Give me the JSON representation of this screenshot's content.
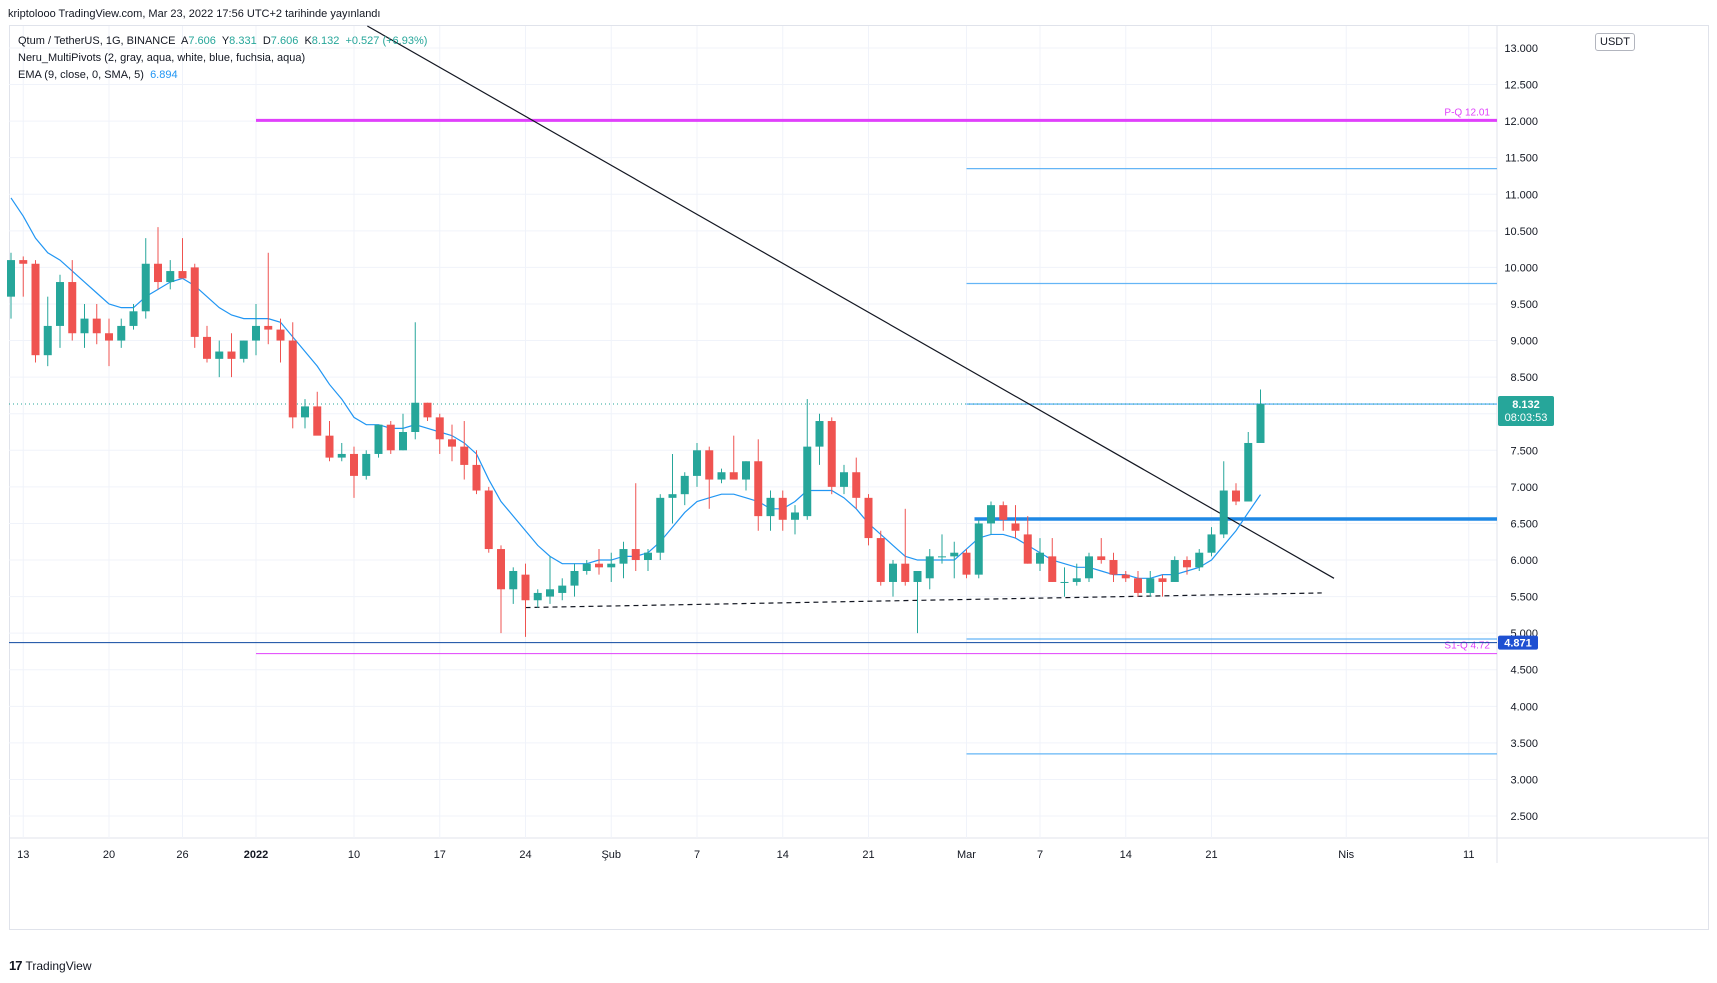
{
  "header": {
    "published_text": "kriptolooo TradingView.com, Mar 23, 2022 17:56 UTC+2 tarihinde yayınlandı"
  },
  "legend": {
    "symbol_line": "Qtum / TetherUS, 1G, BINANCE",
    "ohlc": {
      "a_label": "A",
      "a": "7.606",
      "y_label": "Y",
      "y": "8.331",
      "d_label": "D",
      "d": "7.606",
      "k_label": "K",
      "k": "8.132",
      "change": "+0.527 (+6.93%)"
    },
    "pivots_line": "Neru_MultiPivots (2, gray, aqua, white, blue, fuchsia, aqua)",
    "ema_line": "EMA (9, close, 0, SMA, 5)",
    "ema_value": "6.894"
  },
  "currency_button": "USDT",
  "footer": {
    "logo": "17",
    "brand": "TradingView"
  },
  "colors": {
    "up": "#26a69a",
    "down": "#ef5350",
    "ema": "#2196f3",
    "pivot_main": "#e040fb",
    "pivot_aqua": "#64b5f6",
    "support": "#1e88e5",
    "price_tag": "#26a69a",
    "low_tag": "#1e50d2"
  },
  "chart_data": {
    "type": "candlestick",
    "title": "Qtum / TetherUS, 1G, BINANCE",
    "ylim": [
      2.2,
      13.3
    ],
    "y_ticks": [
      "2.500",
      "3.000",
      "3.500",
      "4.000",
      "4.500",
      "5.000",
      "5.500",
      "6.000",
      "6.500",
      "7.000",
      "7.500",
      "8.000",
      "8.500",
      "9.000",
      "9.500",
      "10.000",
      "10.500",
      "11.000",
      "11.500",
      "12.000",
      "12.500",
      "13.000"
    ],
    "x_ticks": [
      {
        "label": "13",
        "index": 1
      },
      {
        "label": "20",
        "index": 8
      },
      {
        "label": "26",
        "index": 14
      },
      {
        "label": "2022",
        "index": 20
      },
      {
        "label": "10",
        "index": 28
      },
      {
        "label": "17",
        "index": 35
      },
      {
        "label": "24",
        "index": 42
      },
      {
        "label": "Şub",
        "index": 49
      },
      {
        "label": "7",
        "index": 56
      },
      {
        "label": "14",
        "index": 63
      },
      {
        "label": "21",
        "index": 70
      },
      {
        "label": "Mar",
        "index": 78
      },
      {
        "label": "7",
        "index": 84
      },
      {
        "label": "14",
        "index": 91
      },
      {
        "label": "21",
        "index": 98
      },
      {
        "label": "Nis",
        "index": 109
      },
      {
        "label": "11",
        "index": 119
      }
    ],
    "candles": [
      {
        "o": 9.6,
        "h": 10.2,
        "l": 9.3,
        "c": 10.1
      },
      {
        "o": 10.1,
        "h": 10.15,
        "l": 9.6,
        "c": 10.05
      },
      {
        "o": 10.05,
        "h": 10.1,
        "l": 8.7,
        "c": 8.8
      },
      {
        "o": 8.8,
        "h": 9.6,
        "l": 8.65,
        "c": 9.2
      },
      {
        "o": 9.2,
        "h": 9.9,
        "l": 8.9,
        "c": 9.8
      },
      {
        "o": 9.8,
        "h": 10.1,
        "l": 9.0,
        "c": 9.1
      },
      {
        "o": 9.1,
        "h": 9.5,
        "l": 8.9,
        "c": 9.3
      },
      {
        "o": 9.3,
        "h": 9.5,
        "l": 8.95,
        "c": 9.1
      },
      {
        "o": 9.1,
        "h": 9.3,
        "l": 8.65,
        "c": 9.0
      },
      {
        "o": 9.0,
        "h": 9.3,
        "l": 8.9,
        "c": 9.2
      },
      {
        "o": 9.2,
        "h": 9.5,
        "l": 9.15,
        "c": 9.4
      },
      {
        "o": 9.4,
        "h": 10.4,
        "l": 9.3,
        "c": 10.05
      },
      {
        "o": 10.05,
        "h": 10.55,
        "l": 9.7,
        "c": 9.8
      },
      {
        "o": 9.8,
        "h": 10.1,
        "l": 9.7,
        "c": 9.95
      },
      {
        "o": 9.95,
        "h": 10.4,
        "l": 9.85,
        "c": 9.85
      },
      {
        "o": 10.0,
        "h": 10.05,
        "l": 8.9,
        "c": 9.05
      },
      {
        "o": 9.05,
        "h": 9.2,
        "l": 8.7,
        "c": 8.75
      },
      {
        "o": 8.75,
        "h": 9.0,
        "l": 8.5,
        "c": 8.85
      },
      {
        "o": 8.85,
        "h": 9.1,
        "l": 8.5,
        "c": 8.75
      },
      {
        "o": 8.75,
        "h": 9.0,
        "l": 8.7,
        "c": 9.0
      },
      {
        "o": 9.0,
        "h": 9.5,
        "l": 8.8,
        "c": 9.2
      },
      {
        "o": 9.2,
        "h": 10.2,
        "l": 8.95,
        "c": 9.15
      },
      {
        "o": 9.15,
        "h": 9.3,
        "l": 8.7,
        "c": 9.0
      },
      {
        "o": 9.0,
        "h": 9.25,
        "l": 7.8,
        "c": 7.95
      },
      {
        "o": 7.95,
        "h": 8.2,
        "l": 7.8,
        "c": 8.1
      },
      {
        "o": 8.1,
        "h": 8.3,
        "l": 7.8,
        "c": 7.7
      },
      {
        "o": 7.7,
        "h": 7.9,
        "l": 7.35,
        "c": 7.4
      },
      {
        "o": 7.4,
        "h": 7.6,
        "l": 7.35,
        "c": 7.45
      },
      {
        "o": 7.45,
        "h": 7.55,
        "l": 6.85,
        "c": 7.15
      },
      {
        "o": 7.15,
        "h": 7.5,
        "l": 7.1,
        "c": 7.45
      },
      {
        "o": 7.45,
        "h": 7.8,
        "l": 7.4,
        "c": 7.85
      },
      {
        "o": 7.85,
        "h": 7.9,
        "l": 7.45,
        "c": 7.5
      },
      {
        "o": 7.5,
        "h": 8.0,
        "l": 7.5,
        "c": 7.75
      },
      {
        "o": 7.75,
        "h": 9.25,
        "l": 7.65,
        "c": 8.15
      },
      {
        "o": 8.15,
        "h": 8.15,
        "l": 7.9,
        "c": 7.95
      },
      {
        "o": 7.95,
        "h": 8.0,
        "l": 7.45,
        "c": 7.65
      },
      {
        "o": 7.65,
        "h": 7.85,
        "l": 7.35,
        "c": 7.55
      },
      {
        "o": 7.55,
        "h": 7.9,
        "l": 7.1,
        "c": 7.3
      },
      {
        "o": 7.3,
        "h": 7.5,
        "l": 6.9,
        "c": 6.95
      },
      {
        "o": 6.95,
        "h": 7.0,
        "l": 6.1,
        "c": 6.15
      },
      {
        "o": 6.15,
        "h": 6.2,
        "l": 5.0,
        "c": 5.6
      },
      {
        "o": 5.6,
        "h": 5.9,
        "l": 5.4,
        "c": 5.85
      },
      {
        "o": 5.8,
        "h": 5.95,
        "l": 4.95,
        "c": 5.45
      },
      {
        "o": 5.45,
        "h": 5.6,
        "l": 5.35,
        "c": 5.55
      },
      {
        "o": 5.5,
        "h": 6.05,
        "l": 5.4,
        "c": 5.6
      },
      {
        "o": 5.55,
        "h": 5.75,
        "l": 5.45,
        "c": 5.65
      },
      {
        "o": 5.65,
        "h": 5.95,
        "l": 5.5,
        "c": 5.85
      },
      {
        "o": 5.85,
        "h": 6.0,
        "l": 5.8,
        "c": 5.95
      },
      {
        "o": 5.95,
        "h": 6.15,
        "l": 5.8,
        "c": 5.9
      },
      {
        "o": 5.9,
        "h": 6.1,
        "l": 5.7,
        "c": 5.95
      },
      {
        "o": 5.95,
        "h": 6.25,
        "l": 5.75,
        "c": 6.15
      },
      {
        "o": 6.15,
        "h": 7.05,
        "l": 5.85,
        "c": 6.0
      },
      {
        "o": 6.0,
        "h": 6.15,
        "l": 5.85,
        "c": 6.1
      },
      {
        "o": 6.1,
        "h": 6.9,
        "l": 6.0,
        "c": 6.85
      },
      {
        "o": 6.85,
        "h": 7.45,
        "l": 6.5,
        "c": 6.9
      },
      {
        "o": 6.9,
        "h": 7.2,
        "l": 6.75,
        "c": 7.15
      },
      {
        "o": 7.15,
        "h": 7.6,
        "l": 7.0,
        "c": 7.5
      },
      {
        "o": 7.5,
        "h": 7.55,
        "l": 6.7,
        "c": 7.1
      },
      {
        "o": 7.1,
        "h": 7.25,
        "l": 7.05,
        "c": 7.2
      },
      {
        "o": 7.2,
        "h": 7.7,
        "l": 7.1,
        "c": 7.1
      },
      {
        "o": 7.1,
        "h": 7.35,
        "l": 6.95,
        "c": 7.35
      },
      {
        "o": 7.35,
        "h": 7.65,
        "l": 6.4,
        "c": 6.6
      },
      {
        "o": 6.6,
        "h": 6.95,
        "l": 6.4,
        "c": 6.85
      },
      {
        "o": 6.85,
        "h": 6.95,
        "l": 6.4,
        "c": 6.55
      },
      {
        "o": 6.55,
        "h": 6.75,
        "l": 6.35,
        "c": 6.65
      },
      {
        "o": 6.6,
        "h": 8.2,
        "l": 6.55,
        "c": 7.55
      },
      {
        "o": 7.55,
        "h": 8.0,
        "l": 7.3,
        "c": 7.9
      },
      {
        "o": 7.9,
        "h": 7.95,
        "l": 6.9,
        "c": 7.0
      },
      {
        "o": 7.0,
        "h": 7.3,
        "l": 6.9,
        "c": 7.2
      },
      {
        "o": 7.2,
        "h": 7.4,
        "l": 6.7,
        "c": 6.85
      },
      {
        "o": 6.85,
        "h": 6.9,
        "l": 6.2,
        "c": 6.3
      },
      {
        "o": 6.3,
        "h": 6.4,
        "l": 5.65,
        "c": 5.7
      },
      {
        "o": 5.7,
        "h": 6.0,
        "l": 5.5,
        "c": 5.95
      },
      {
        "o": 5.95,
        "h": 6.7,
        "l": 5.65,
        "c": 5.7
      },
      {
        "o": 5.7,
        "h": 5.85,
        "l": 5.0,
        "c": 5.85
      },
      {
        "o": 5.75,
        "h": 6.15,
        "l": 5.6,
        "c": 6.05
      },
      {
        "o": 6.05,
        "h": 6.35,
        "l": 5.95,
        "c": 6.05
      },
      {
        "o": 6.05,
        "h": 6.25,
        "l": 5.75,
        "c": 6.1
      },
      {
        "o": 6.1,
        "h": 6.15,
        "l": 5.75,
        "c": 5.8
      },
      {
        "o": 5.8,
        "h": 6.55,
        "l": 5.75,
        "c": 6.5
      },
      {
        "o": 6.5,
        "h": 6.8,
        "l": 6.35,
        "c": 6.75
      },
      {
        "o": 6.75,
        "h": 6.8,
        "l": 6.4,
        "c": 6.55
      },
      {
        "o": 6.5,
        "h": 6.75,
        "l": 6.3,
        "c": 6.4
      },
      {
        "o": 6.35,
        "h": 6.6,
        "l": 5.95,
        "c": 5.95
      },
      {
        "o": 5.95,
        "h": 6.3,
        "l": 5.85,
        "c": 6.1
      },
      {
        "o": 6.05,
        "h": 6.3,
        "l": 5.7,
        "c": 5.7
      },
      {
        "o": 5.7,
        "h": 5.9,
        "l": 5.5,
        "c": 5.7
      },
      {
        "o": 5.7,
        "h": 5.95,
        "l": 5.65,
        "c": 5.75
      },
      {
        "o": 5.75,
        "h": 6.1,
        "l": 5.7,
        "c": 6.05
      },
      {
        "o": 6.05,
        "h": 6.3,
        "l": 5.95,
        "c": 6.0
      },
      {
        "o": 6.0,
        "h": 6.1,
        "l": 5.7,
        "c": 5.8
      },
      {
        "o": 5.8,
        "h": 5.85,
        "l": 5.7,
        "c": 5.75
      },
      {
        "o": 5.75,
        "h": 5.85,
        "l": 5.5,
        "c": 5.55
      },
      {
        "o": 5.55,
        "h": 5.85,
        "l": 5.5,
        "c": 5.75
      },
      {
        "o": 5.75,
        "h": 5.8,
        "l": 5.5,
        "c": 5.7
      },
      {
        "o": 5.7,
        "h": 6.05,
        "l": 5.7,
        "c": 6.0
      },
      {
        "o": 6.0,
        "h": 6.05,
        "l": 5.8,
        "c": 5.9
      },
      {
        "o": 5.9,
        "h": 6.15,
        "l": 5.85,
        "c": 6.1
      },
      {
        "o": 6.1,
        "h": 6.45,
        "l": 6.05,
        "c": 6.35
      },
      {
        "o": 6.35,
        "h": 7.35,
        "l": 6.3,
        "c": 6.95
      },
      {
        "o": 6.95,
        "h": 7.05,
        "l": 6.75,
        "c": 6.8
      },
      {
        "o": 6.8,
        "h": 7.75,
        "l": 6.8,
        "c": 7.6
      },
      {
        "o": 7.6,
        "h": 8.331,
        "l": 7.606,
        "c": 8.132
      }
    ],
    "ema": [
      10.95,
      10.7,
      10.4,
      10.2,
      10.1,
      9.95,
      9.8,
      9.65,
      9.5,
      9.45,
      9.45,
      9.6,
      9.7,
      9.8,
      9.85,
      9.75,
      9.6,
      9.45,
      9.35,
      9.3,
      9.3,
      9.3,
      9.25,
      9.05,
      8.85,
      8.65,
      8.4,
      8.2,
      7.95,
      7.85,
      7.85,
      7.8,
      7.8,
      7.85,
      7.8,
      7.75,
      7.7,
      7.6,
      7.45,
      7.1,
      6.8,
      6.6,
      6.4,
      6.2,
      6.05,
      5.95,
      5.95,
      5.95,
      6.0,
      6.0,
      6.05,
      6.05,
      6.1,
      6.25,
      6.45,
      6.65,
      6.8,
      6.85,
      6.9,
      6.9,
      6.85,
      6.8,
      6.7,
      6.7,
      6.8,
      6.95,
      6.95,
      6.95,
      6.85,
      6.7,
      6.5,
      6.35,
      6.2,
      6.05,
      6.0,
      6.0,
      6.0,
      6.0,
      6.15,
      6.3,
      6.35,
      6.35,
      6.3,
      6.2,
      6.1,
      6.0,
      5.95,
      5.9,
      5.9,
      5.85,
      5.8,
      5.8,
      5.75,
      5.75,
      5.8,
      5.8,
      5.85,
      5.9,
      6.0,
      6.2,
      6.4,
      6.65,
      6.894
    ],
    "pivot_levels": [
      {
        "label": "P-Q 12.01",
        "value": 12.01,
        "from_index": 20,
        "kind": "main"
      },
      {
        "label": "",
        "value": 11.35,
        "from_index": 78,
        "kind": "aqua"
      },
      {
        "label": "",
        "value": 9.78,
        "from_index": 78,
        "kind": "aqua"
      },
      {
        "label": "",
        "value": 8.132,
        "from_index": 78,
        "kind": "aqua"
      },
      {
        "label": "",
        "value": 4.92,
        "from_index": 78,
        "kind": "aqua"
      },
      {
        "label": "S1-Q 4.72",
        "value": 4.72,
        "from_index": 20,
        "kind": "main"
      },
      {
        "label": "",
        "value": 3.35,
        "from_index": 78,
        "kind": "aqua"
      }
    ],
    "support_line": {
      "value": 6.56,
      "from_index": 78
    },
    "low_line": {
      "value": 4.871
    },
    "trendline": {
      "x1": 27,
      "y1": 13.5,
      "x2": 108,
      "y2": 5.75
    },
    "dashed_line": {
      "x1": 42,
      "y1": 5.35,
      "x2": 107,
      "y2": 5.55
    },
    "price_tag": {
      "price": "8.132",
      "countdown": "08:03:53",
      "value": 8.132
    },
    "low_tag": {
      "price": "4.871",
      "value": 4.871
    }
  }
}
